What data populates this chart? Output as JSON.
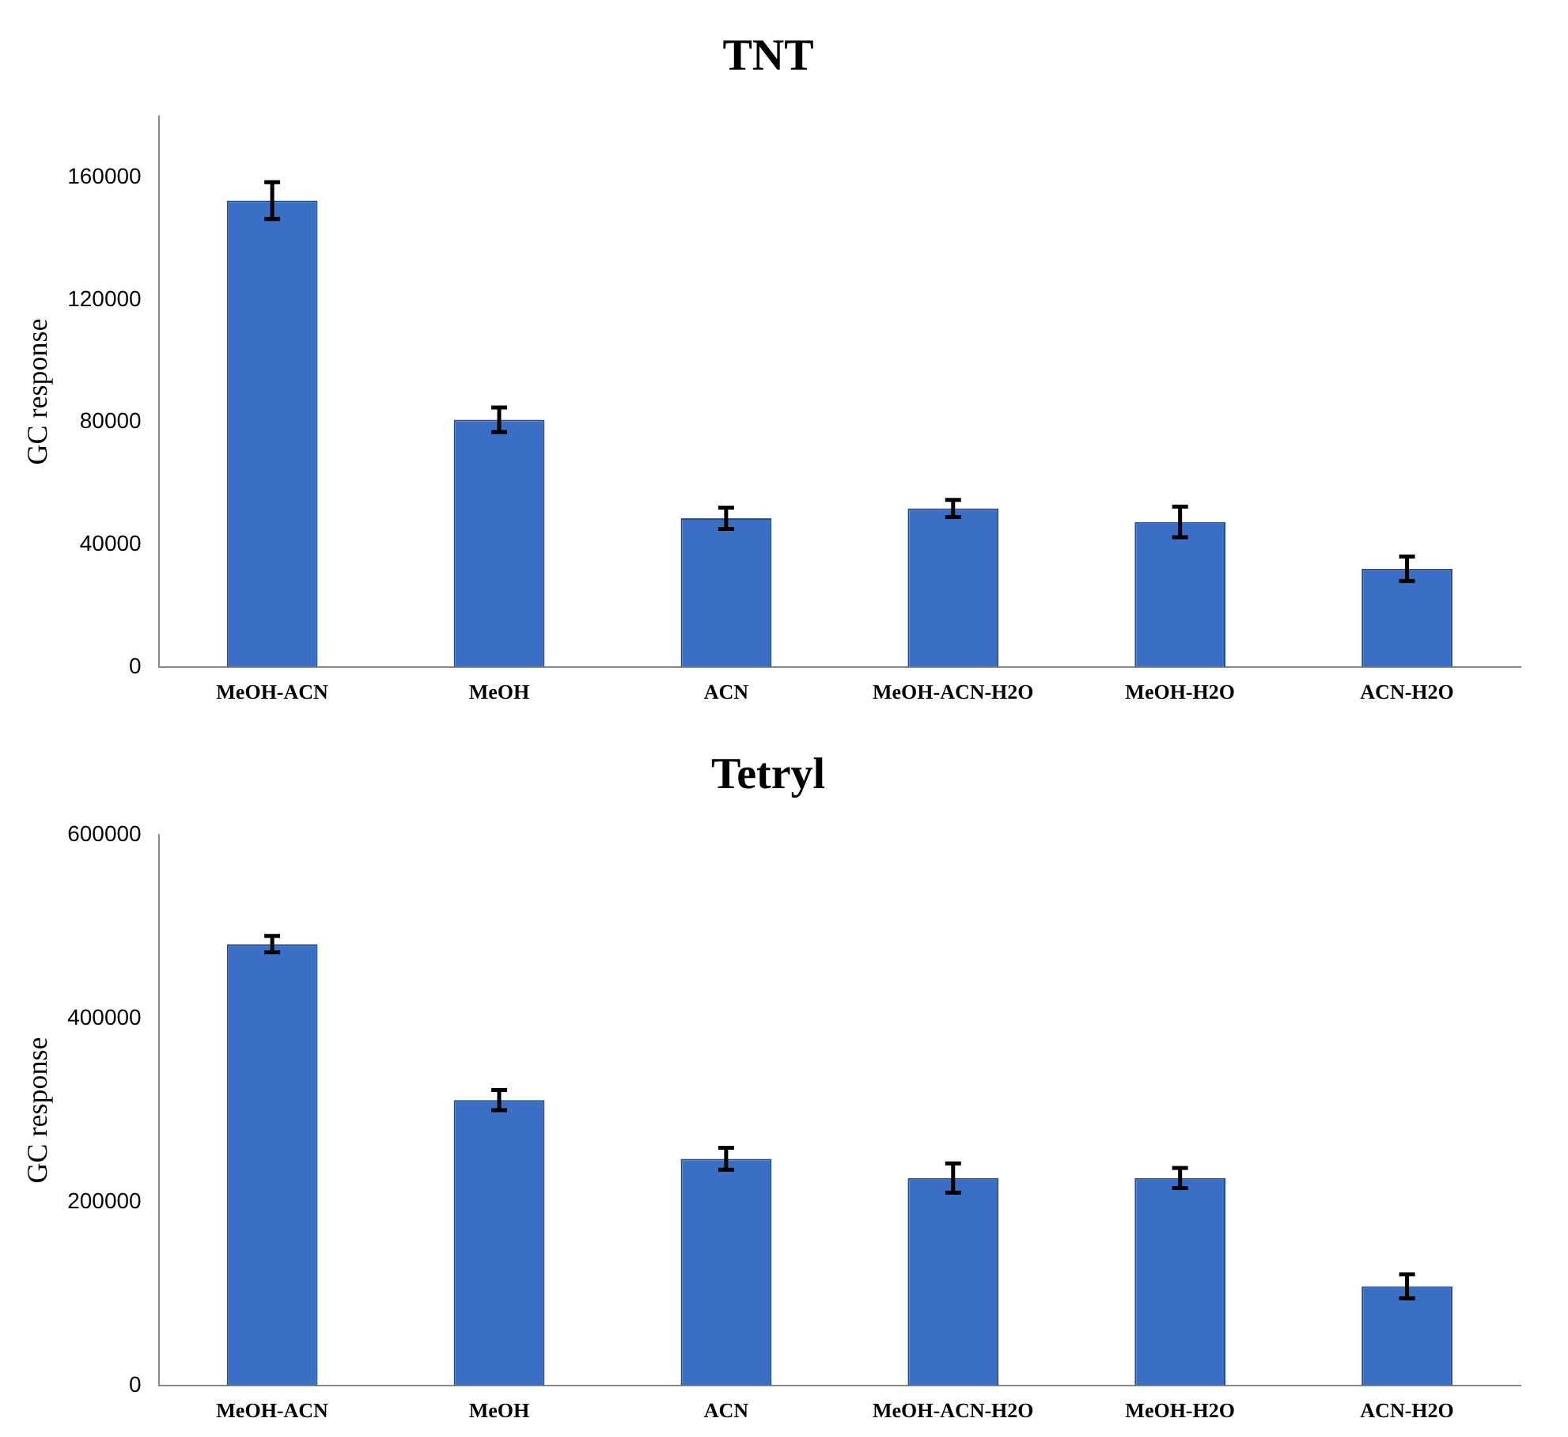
{
  "chart_data": [
    {
      "type": "bar",
      "title": "TNT",
      "ylabel": "GC response",
      "categories": [
        "MeOH-ACN",
        "MeOH",
        "ACN",
        "MeOH-ACN-H2O",
        "MeOH-H2O",
        "ACN-H2O"
      ],
      "values": [
        152500,
        80800,
        48600,
        51800,
        47400,
        32100
      ],
      "errors": [
        6000,
        4000,
        3500,
        2800,
        5000,
        4000
      ],
      "color": "#3b6fc6",
      "ylim": [
        0,
        180000
      ],
      "yticks": [
        0,
        40000,
        80000,
        120000,
        160000
      ],
      "grid": false,
      "legend": false
    },
    {
      "type": "bar",
      "title": "Tetryl",
      "ylabel": "GC response",
      "categories": [
        "MeOH-ACN",
        "MeOH",
        "ACN",
        "MeOH-ACN-H2O",
        "MeOH-H2O",
        "ACN-H2O"
      ],
      "values": [
        481000,
        311000,
        247000,
        226000,
        226000,
        108000
      ],
      "errors": [
        9000,
        11000,
        12000,
        16000,
        11000,
        13000
      ],
      "color": "#3b6fc6",
      "ylim": [
        0,
        600000
      ],
      "yticks": [
        0,
        200000,
        400000,
        600000
      ],
      "grid": false,
      "legend": false
    }
  ]
}
